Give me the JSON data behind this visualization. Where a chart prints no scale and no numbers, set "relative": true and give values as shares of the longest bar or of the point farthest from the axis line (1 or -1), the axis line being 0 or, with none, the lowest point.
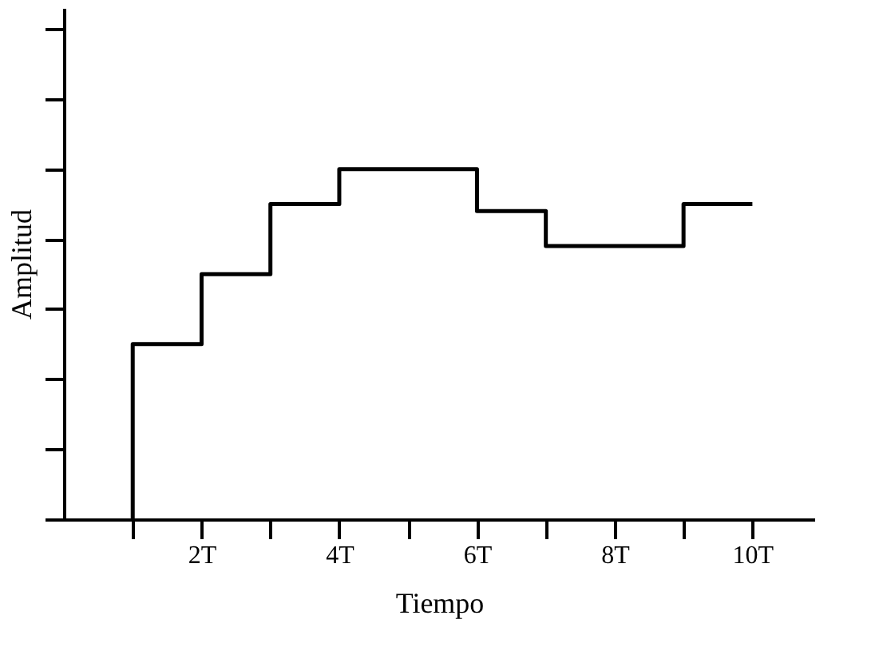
{
  "chart_data": {
    "type": "step",
    "xlabel": "Tiempo",
    "ylabel": "Amplitud",
    "relative": true,
    "x": [
      1,
      1,
      2,
      3,
      4,
      5,
      6,
      7,
      8,
      9,
      10
    ],
    "series": [
      {
        "color": "#000000",
        "values": [
          0,
          0.5,
          0.7,
          0.9,
          1.0,
          1.0,
          0.88,
          0.78,
          0.78,
          0.9,
          0.9
        ]
      }
    ],
    "xlim": [
      0,
      10.9
    ],
    "xticks": [
      {
        "value": 1,
        "label": null
      },
      {
        "value": 2,
        "label": "2T"
      },
      {
        "value": 3,
        "label": null
      },
      {
        "value": 4,
        "label": "4T"
      },
      {
        "value": 5,
        "label": null
      },
      {
        "value": 6,
        "label": "6T"
      },
      {
        "value": 7,
        "label": null
      },
      {
        "value": 8,
        "label": "8T"
      },
      {
        "value": 9,
        "label": null
      },
      {
        "value": 10,
        "label": "10T"
      }
    ],
    "tick_labels": "x",
    "grid": false,
    "marker": "none",
    "line_style": "solid"
  }
}
